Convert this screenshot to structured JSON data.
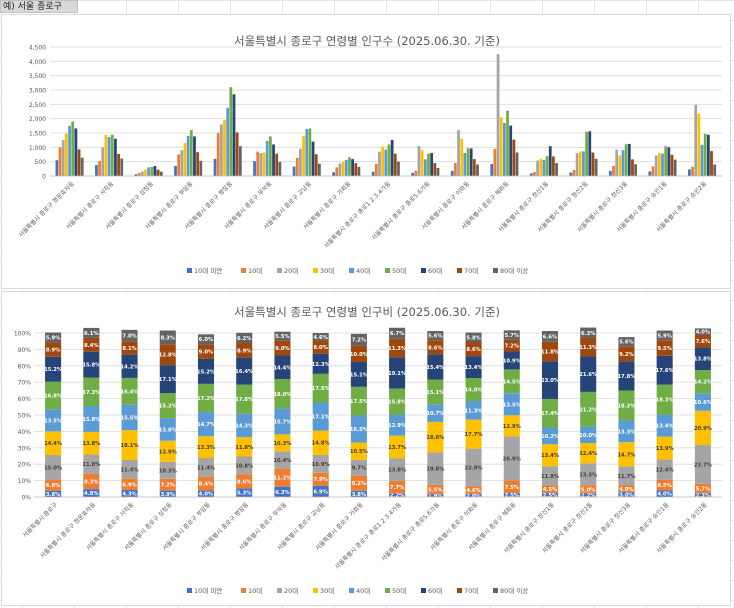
{
  "sheet": {
    "cell_label": "예) 서울 종로구"
  },
  "colors": [
    "#4472c4",
    "#ed7d31",
    "#a5a5a5",
    "#ffc000",
    "#5b9bd5",
    "#70ad47",
    "#264478",
    "#9e480e",
    "#636363"
  ],
  "chart_data": [
    {
      "type": "bar",
      "title": "서울특별시 종로구 연령별 인구수 (2025.06.30. 기준)",
      "categories": [
        "서울특별시 종로구 청운효자동",
        "서울특별시 종로구 사직동",
        "서울특별시 종로구 삼청동",
        "서울특별시 종로구 부암동",
        "서울특별시 종로구 평창동",
        "서울특별시 종로구 무악동",
        "서울특별시 종로구 교남동",
        "서울특별시 종로구 가회동",
        "서울특별시 종로구 종로1.2.3.4가동",
        "서울특별시 종로구 종로5.6가동",
        "서울특별시 종로구 이화동",
        "서울특별시 종로구 혜화동",
        "서울특별시 종로구 창신1동",
        "서울특별시 종로구 창신2동",
        "서울특별시 종로구 창신3동",
        "서울특별시 종로구 숭인1동",
        "서울특별시 종로구 숭인2동"
      ],
      "series": [
        {
          "name": "10대 미만",
          "values": [
            550,
            380,
            60,
            350,
            600,
            520,
            330,
            130,
            150,
            110,
            180,
            420,
            90,
            120,
            180,
            160,
            230
          ]
        },
        {
          "name": "10대",
          "values": [
            1000,
            520,
            110,
            750,
            1500,
            850,
            630,
            300,
            420,
            180,
            450,
            950,
            140,
            210,
            350,
            330,
            320
          ]
        },
        {
          "name": "20대",
          "values": [
            1250,
            1000,
            160,
            900,
            1800,
            800,
            950,
            440,
            850,
            1050,
            1600,
            4250,
            540,
            800,
            920,
            720,
            2480
          ]
        },
        {
          "name": "30대",
          "values": [
            1480,
            1430,
            230,
            1150,
            1950,
            820,
            1400,
            500,
            1030,
            900,
            1300,
            2050,
            600,
            850,
            720,
            800,
            2180
          ]
        },
        {
          "name": "40대",
          "values": [
            1750,
            1360,
            300,
            1400,
            2380,
            1220,
            1640,
            560,
            920,
            580,
            800,
            1850,
            560,
            860,
            900,
            780,
            1090
          ]
        },
        {
          "name": "50대",
          "values": [
            1900,
            1440,
            320,
            1600,
            3100,
            1380,
            1660,
            650,
            1100,
            780,
            970,
            2280,
            690,
            1540,
            1110,
            1040,
            1470
          ]
        },
        {
          "name": "60대",
          "values": [
            1660,
            1300,
            350,
            1380,
            2850,
            1100,
            1200,
            590,
            1260,
            800,
            960,
            1760,
            1040,
            1560,
            1120,
            1000,
            1440
          ]
        },
        {
          "name": "70대",
          "values": [
            930,
            770,
            220,
            830,
            1520,
            780,
            760,
            450,
            780,
            450,
            590,
            1270,
            680,
            820,
            580,
            740,
            870
          ]
        },
        {
          "name": "80대 이상",
          "values": [
            640,
            610,
            150,
            530,
            1040,
            490,
            430,
            320,
            500,
            280,
            400,
            820,
            450,
            600,
            410,
            570,
            400
          ]
        }
      ],
      "ylim": [
        0,
        4500
      ],
      "yticks": [
        "0",
        "500",
        "1,000",
        "1,500",
        "2,000",
        "2,500",
        "3,000",
        "3,500",
        "4,000",
        "4,500"
      ],
      "grid": true,
      "legend_position": "bottom"
    },
    {
      "type": "bar",
      "stacked": "percent",
      "title": "서울특별시 종로구 연령별 인구비 (2025.06.30. 기준)",
      "categories": [
        "서울특별시 종로구",
        "서울특별시 종로구 청운효자동",
        "서울특별시 종로구 사직동",
        "서울특별시 종로구 삼청동",
        "서울특별시 종로구 부암동",
        "서울특별시 종로구 평창동",
        "서울특별시 종로구 무악동",
        "서울특별시 종로구 교남동",
        "서울특별시 종로구 가회동",
        "서울특별시 종로구 종로1.2.3.4가동",
        "서울특별시 종로구 종로5.6가동",
        "서울특별시 종로구 이화동",
        "서울특별시 종로구 혜화동",
        "서울특별시 종로구 창신1동",
        "서울특별시 종로구 창신2동",
        "서울특별시 종로구 창신3동",
        "서울특별시 종로구 숭인1동",
        "서울특별시 종로구 숭인2동"
      ],
      "series": [
        {
          "name": "10대 미만",
          "values": [
            3.8,
            4.8,
            4.3,
            3.9,
            4.0,
            5.3,
            6.3,
            6.9,
            3.8,
            2.2,
            1.9,
            2.0,
            2.5,
            2.5,
            2.2,
            3.0,
            4.0,
            2.3
          ]
        },
        {
          "name": "10대",
          "values": [
            6.8,
            9.3,
            6.9,
            7.2,
            8.4,
            8.6,
            11.2,
            7.9,
            9.2,
            7.7,
            5.5,
            4.6,
            7.5,
            4.5,
            5.0,
            4.0,
            6.5,
            5.7
          ]
        },
        {
          "name": "20대",
          "values": [
            15.0,
            11.8,
            11.4,
            10.3,
            11.4,
            10.8,
            10.4,
            10.9,
            9.7,
            13.8,
            19.8,
            22.9,
            26.9,
            11.8,
            13.3,
            11.7,
            12.4,
            23.7
          ]
        },
        {
          "name": "30대",
          "values": [
            14.4,
            13.8,
            18.1,
            12.9,
            13.3,
            11.8,
            10.3,
            14.8,
            10.5,
            13.7,
            18.6,
            17.7,
            12.9,
            13.4,
            12.4,
            14.7,
            13.9,
            20.9
          ]
        },
        {
          "name": "40대",
          "values": [
            13.5,
            15.8,
            15.5,
            13.8,
            14.7,
            14.3,
            15.7,
            17.1,
            16.5,
            12.9,
            10.7,
            11.3,
            13.5,
            10.2,
            10.0,
            13.3,
            13.4,
            10.6
          ]
        },
        {
          "name": "50대",
          "values": [
            16.8,
            17.3,
            16.4,
            15.2,
            17.2,
            17.8,
            18.0,
            17.5,
            17.5,
            15.8,
            15.1,
            14.0,
            14.5,
            17.4,
            21.2,
            18.2,
            18.3,
            14.2
          ]
        },
        {
          "name": "60대",
          "values": [
            15.2,
            15.8,
            14.2,
            17.1,
            15.2,
            16.4,
            14.4,
            12.3,
            15.1,
            19.1,
            15.4,
            13.4,
            10.9,
            23.0,
            21.6,
            17.8,
            17.6,
            13.8
          ]
        },
        {
          "name": "70대",
          "values": [
            8.9,
            8.4,
            8.1,
            12.8,
            9.0,
            8.9,
            9.0,
            8.0,
            10.0,
            11.3,
            8.6,
            8.6,
            7.2,
            11.8,
            11.3,
            9.2,
            9.5,
            7.6
          ]
        },
        {
          "name": "80대 이상",
          "values": [
            5.9,
            6.1,
            7.0,
            8.3,
            6.0,
            6.2,
            5.5,
            4.6,
            7.2,
            6.7,
            5.6,
            5.8,
            5.7,
            6.6,
            6.3,
            5.6,
            5.9,
            4.0
          ]
        }
      ],
      "ylim": [
        0,
        100
      ],
      "yticks": [
        "0%",
        "10%",
        "20%",
        "30%",
        "40%",
        "50%",
        "60%",
        "70%",
        "80%",
        "90%",
        "100%"
      ],
      "grid": true,
      "data_labels": true,
      "legend_position": "bottom"
    }
  ]
}
